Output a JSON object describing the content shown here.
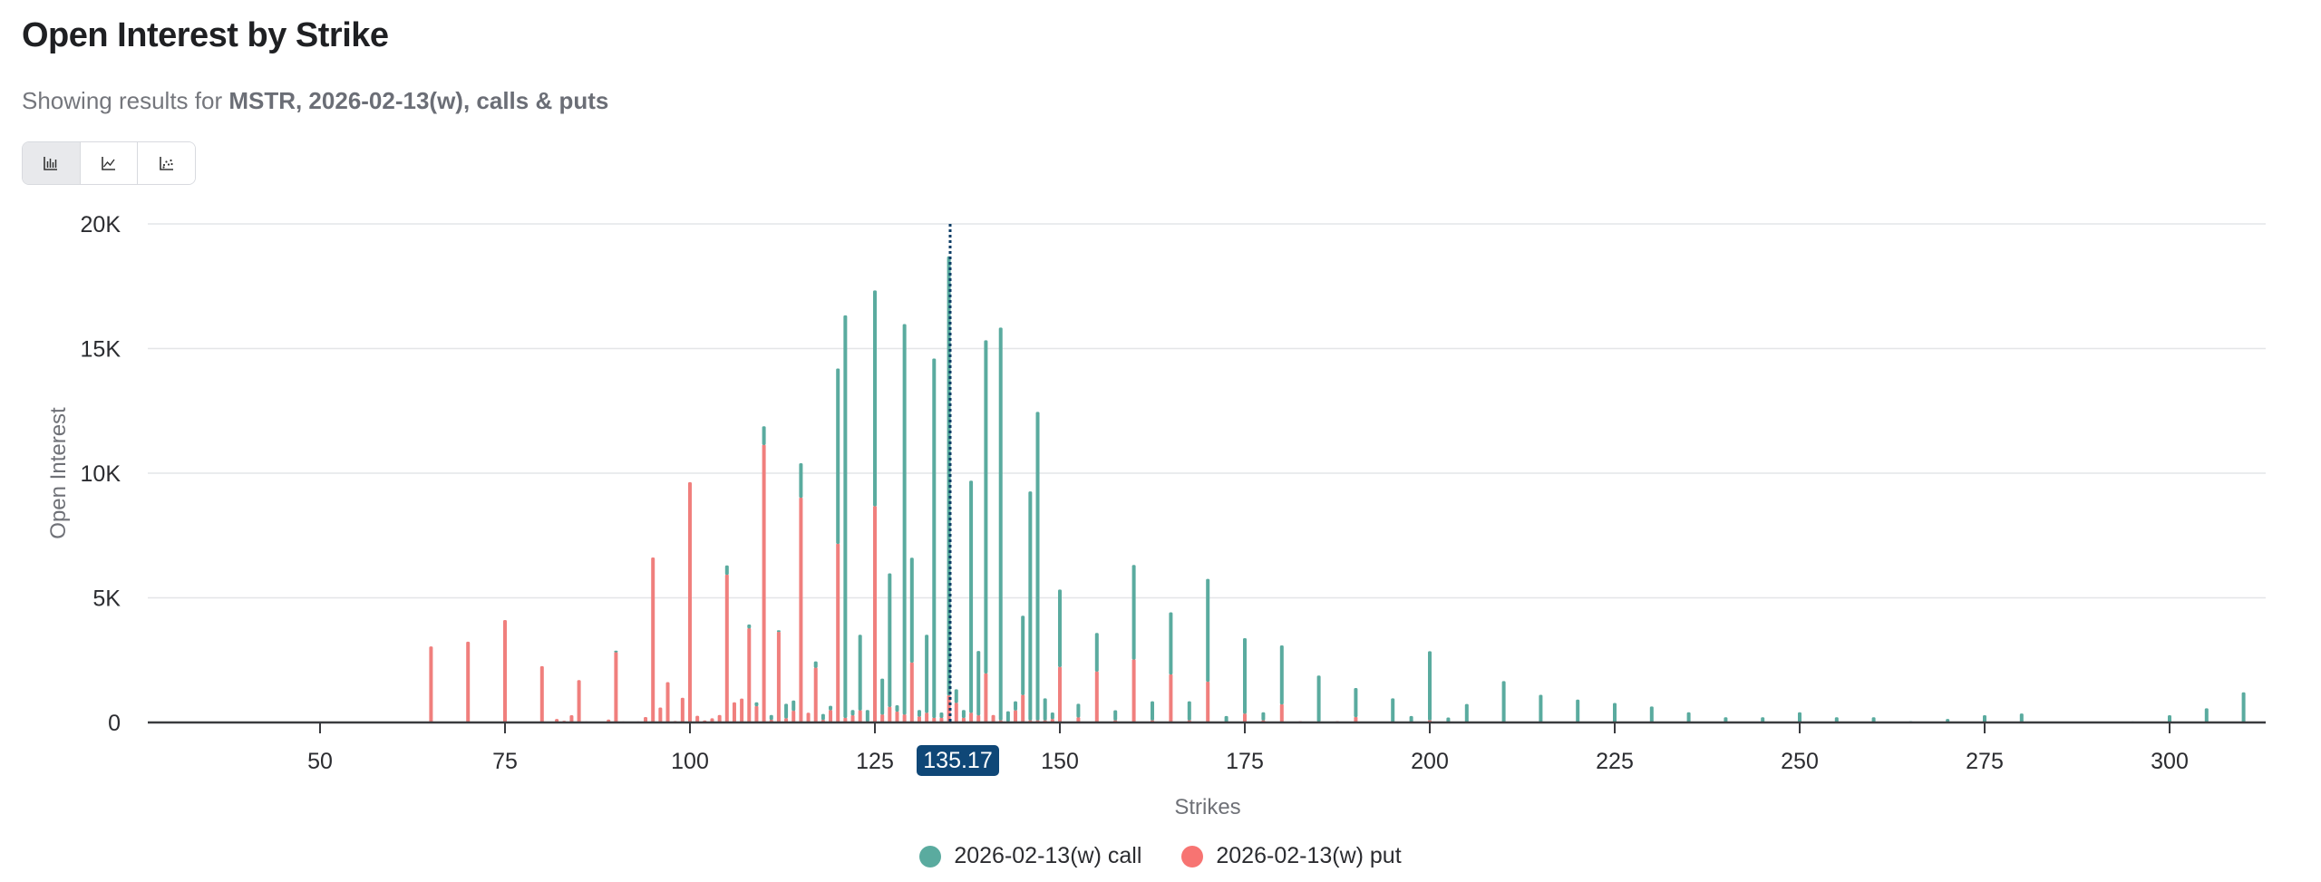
{
  "header": {
    "title": "Open Interest by Strike",
    "subtitle_prefix": "Showing results for ",
    "subtitle_bold": "MSTR, 2026-02-13(w), calls & puts"
  },
  "view_toggle": {
    "buttons": [
      {
        "icon": "bar-chart-icon",
        "active": true
      },
      {
        "icon": "line-chart-icon",
        "active": false
      },
      {
        "icon": "scatter-chart-icon",
        "active": false
      }
    ]
  },
  "colors": {
    "call": "#5aab9f",
    "put": "#f07f7d",
    "spot_line": "#0d3d66",
    "spot_badge": "#0f4777",
    "grid": "#e4e5e8",
    "axis": "#3a3b3f"
  },
  "spot": {
    "label": "135.17",
    "value": 135.17
  },
  "legend": {
    "call_label": "2026-02-13(w) call",
    "put_label": "2026-02-13(w) put"
  },
  "chart_data": {
    "type": "bar",
    "stacked": true,
    "title": "Open Interest by Strike",
    "xlabel": "Strikes",
    "ylabel": "Open Interest",
    "xlim": [
      26.7,
      313
    ],
    "ylim": [
      0,
      20000
    ],
    "x_ticks": [
      50,
      75,
      100,
      125,
      150,
      175,
      200,
      225,
      250,
      275,
      300
    ],
    "y_ticks": [
      0,
      5000,
      10000,
      15000,
      20000
    ],
    "y_tick_labels": [
      "0",
      "5K",
      "10K",
      "15K",
      "20K"
    ],
    "grid": true,
    "legend_position": "bottom",
    "annotations": [
      {
        "type": "vline",
        "x": 135.17,
        "label": "135.17",
        "style": "dotted"
      }
    ],
    "strikes": [
      65,
      70,
      75,
      80,
      82,
      83,
      84,
      85,
      86,
      89,
      90,
      91,
      93,
      94,
      95,
      96,
      97,
      98,
      99,
      100,
      101,
      102,
      103,
      104,
      105,
      106,
      107,
      108,
      109,
      110,
      111,
      112,
      113,
      114,
      115,
      116,
      117,
      118,
      119,
      120,
      121,
      122,
      123,
      124,
      125,
      126,
      127,
      128,
      129,
      130,
      131,
      132,
      133,
      134,
      135,
      136,
      137,
      138,
      139,
      140,
      141,
      142,
      143,
      144,
      145,
      146,
      147,
      148,
      149,
      150,
      152.5,
      155,
      157.5,
      160,
      162.5,
      165,
      167.5,
      170,
      172.5,
      175,
      177.5,
      180,
      182.5,
      185,
      187.5,
      190,
      195,
      197.5,
      200,
      202.5,
      205,
      210,
      215,
      220,
      225,
      230,
      235,
      240,
      245,
      250,
      255,
      260,
      265,
      270,
      275,
      280,
      295,
      300,
      305,
      310
    ],
    "series": [
      {
        "name": "2026-02-13(w) call",
        "color": "#5aab9f",
        "values": [
          0,
          0,
          0,
          0,
          0,
          0,
          0,
          0,
          0,
          0,
          50,
          0,
          0,
          0,
          0,
          0,
          0,
          0,
          0,
          0,
          0,
          0,
          0,
          0,
          360,
          0,
          0,
          140,
          140,
          730,
          180,
          50,
          570,
          400,
          1370,
          0,
          240,
          220,
          160,
          7020,
          16130,
          200,
          3020,
          450,
          8640,
          1430,
          5340,
          240,
          15650,
          4190,
          250,
          3120,
          14400,
          200,
          17600,
          530,
          300,
          9300,
          2570,
          13350,
          0,
          15740,
          400,
          350,
          3160,
          9170,
          12360,
          870,
          250,
          3090,
          530,
          1530,
          390,
          3780,
          750,
          2480,
          750,
          4110,
          260,
          3010,
          310,
          2350,
          0,
          1830,
          0,
          1150,
          970,
          260,
          2760,
          200,
          740,
          1660,
          1110,
          920,
          780,
          640,
          410,
          210,
          210,
          410,
          210,
          210,
          50,
          140,
          290,
          360,
          40,
          290,
          570,
          1210
        ]
      },
      {
        "name": "2026-02-13(w) put",
        "color": "#f07f7d",
        "values": [
          3050,
          3240,
          4110,
          2260,
          140,
          70,
          290,
          1700,
          40,
          120,
          2830,
          40,
          40,
          220,
          6620,
          600,
          1620,
          60,
          990,
          9640,
          270,
          80,
          170,
          300,
          5940,
          810,
          960,
          3790,
          670,
          11150,
          120,
          3650,
          180,
          480,
          9030,
          390,
          2210,
          120,
          510,
          7180,
          200,
          300,
          500,
          50,
          8690,
          330,
          640,
          450,
          330,
          2420,
          250,
          400,
          200,
          200,
          1100,
          800,
          200,
          400,
          300,
          1980,
          300,
          100,
          50,
          500,
          1120,
          100,
          100,
          100,
          150,
          2240,
          220,
          2060,
          100,
          2540,
          100,
          1940,
          100,
          1650,
          0,
          370,
          100,
          740,
          50,
          50,
          50,
          230,
          0,
          0,
          100,
          0,
          0,
          0,
          0,
          0,
          0,
          0,
          0,
          0,
          0,
          0,
          0,
          0,
          0,
          0,
          0,
          0,
          0,
          0,
          0,
          0
        ]
      }
    ]
  }
}
